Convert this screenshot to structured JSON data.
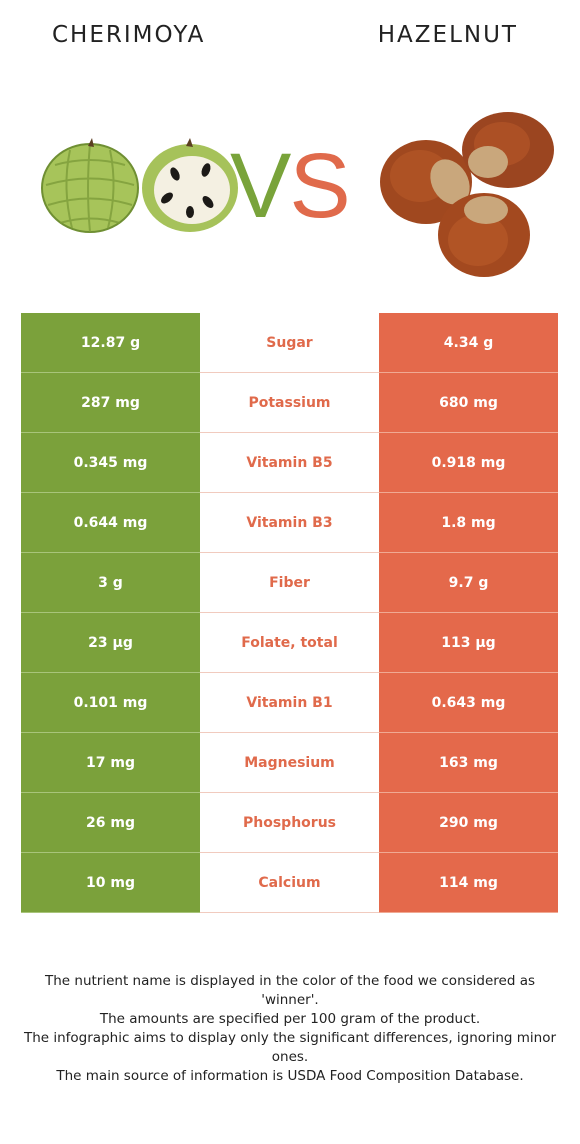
{
  "header": {
    "left_food": "CHERIMOYA",
    "right_food": "HAZELNUT"
  },
  "vs": {
    "v": "V",
    "s": "S"
  },
  "colors": {
    "left": "#7ba13b",
    "right": "#e4694b",
    "winner_text": "#e06a4b"
  },
  "rows": [
    {
      "left": "12.87 g",
      "nutrient": "Sugar",
      "right": "4.34 g"
    },
    {
      "left": "287 mg",
      "nutrient": "Potassium",
      "right": "680 mg"
    },
    {
      "left": "0.345 mg",
      "nutrient": "Vitamin B5",
      "right": "0.918 mg"
    },
    {
      "left": "0.644 mg",
      "nutrient": "Vitamin B3",
      "right": "1.8 mg"
    },
    {
      "left": "3 g",
      "nutrient": "Fiber",
      "right": "9.7 g"
    },
    {
      "left": "23 µg",
      "nutrient": "Folate, total",
      "right": "113 µg"
    },
    {
      "left": "0.101 mg",
      "nutrient": "Vitamin B1",
      "right": "0.643 mg"
    },
    {
      "left": "17 mg",
      "nutrient": "Magnesium",
      "right": "163 mg"
    },
    {
      "left": "26 mg",
      "nutrient": "Phosphorus",
      "right": "290 mg"
    },
    {
      "left": "10 mg",
      "nutrient": "Calcium",
      "right": "114 mg"
    }
  ],
  "footer": [
    "The nutrient name is displayed in the color of the food we considered as 'winner'.",
    "The amounts are specified per 100 gram of the product.",
    "The infographic aims to display only the significant differences, ignoring minor ones.",
    "The main source of information is USDA Food Composition Database."
  ]
}
